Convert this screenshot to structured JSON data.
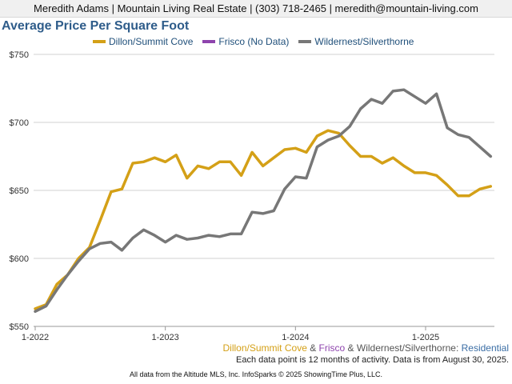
{
  "header": {
    "text": "Meredith Adams | Mountain Living Real Estate | (303) 718-2465 | meredith@mountain-living.com"
  },
  "chart_title": "Average Price Per Square Foot",
  "colors": {
    "dillon": "#d4a017",
    "frisco": "#8e44ad",
    "wilderness": "#777777",
    "residential": "#3b6ea5",
    "grid": "#d0d0d0"
  },
  "caption": {
    "part1": "Dillon/Summit Cove",
    "amp1": " & ",
    "part2": "Frisco",
    "amp2": " & ",
    "part3": "Wildernest/Silverthorne",
    "colon": ": ",
    "part4": "Residential"
  },
  "note": "Each data point is 12 months of activity. Data is from August 30, 2025.",
  "footer": "All data from the Altitude MLS, Inc. InfoSparks © 2025 ShowingTime Plus, LLC.",
  "chart_data": {
    "type": "line",
    "title": "Average Price Per Square Foot",
    "ylim": [
      550,
      750
    ],
    "y_ticks": [
      "$550",
      "$600",
      "$650",
      "$700",
      "$750"
    ],
    "y_tick_values": [
      550,
      600,
      650,
      700,
      750
    ],
    "x_ticks": [
      "1-2022",
      "1-2023",
      "1-2024",
      "1-2025"
    ],
    "x_range": [
      "2022-01",
      "2025-07"
    ],
    "grid": "horizontal",
    "legend": "top",
    "series": [
      {
        "name": "Dillon/Summit Cove",
        "color": "#d4a017",
        "values": [
          563,
          566,
          581,
          588,
          600,
          608,
          628,
          649,
          651,
          670,
          671,
          674,
          671,
          676,
          659,
          668,
          666,
          671,
          671,
          661,
          678,
          668,
          674,
          680,
          681,
          678,
          690,
          694,
          692,
          683,
          675,
          675,
          670,
          674,
          668,
          663,
          663,
          661,
          654,
          646,
          646,
          651,
          653
        ]
      },
      {
        "name": "Frisco (No Data)",
        "color": "#8e44ad",
        "values": []
      },
      {
        "name": "Wildernest/Silverthorne",
        "color": "#777777",
        "values": [
          561,
          565,
          577,
          588,
          598,
          607,
          611,
          612,
          606,
          615,
          621,
          617,
          612,
          617,
          614,
          615,
          617,
          616,
          618,
          618,
          634,
          633,
          635,
          651,
          660,
          659,
          682,
          687,
          690,
          697,
          710,
          717,
          714,
          723,
          724,
          719,
          714,
          721,
          696,
          691,
          689,
          682,
          675
        ]
      }
    ]
  }
}
